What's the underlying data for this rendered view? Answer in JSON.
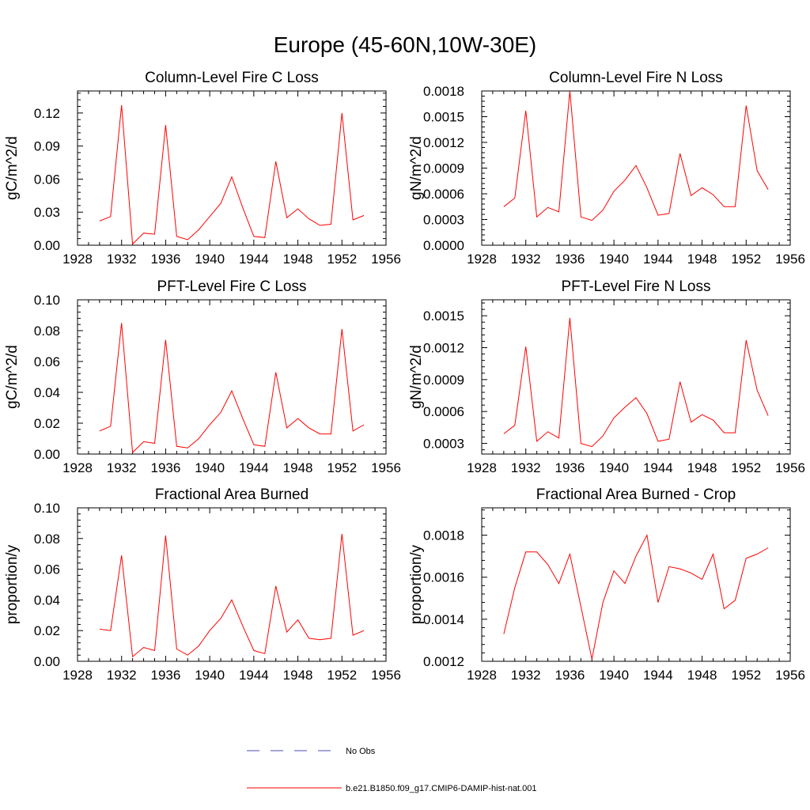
{
  "figure_title": "Europe (45-60N,10W-30E)",
  "colors": {
    "model_line": "#ff0000",
    "obs_line": "#4b4bb4",
    "axes": "#000000"
  },
  "legend": {
    "obs_label": "No Obs",
    "model_label": "b.e21.B1850.f09_g17.CMIP6-DAMIP-hist-nat.001",
    "obs_style": "dashed",
    "model_style": "solid"
  },
  "chart_data": [
    {
      "type": "line",
      "title": "Column-Level Fire C Loss",
      "ylabel": "gC/m^2/d",
      "xlim": [
        1928,
        1956
      ],
      "ylim": [
        0,
        0.14
      ],
      "xticks": [
        "1928",
        "1932",
        "1936",
        "1940",
        "1944",
        "1948",
        "1952",
        "1956"
      ],
      "yticks": [
        "0.00",
        "0.03",
        "0.06",
        "0.09",
        "0.12"
      ],
      "ytick_values": [
        0,
        0.03,
        0.06,
        0.09,
        0.12
      ],
      "series": [
        {
          "x": [
            1930,
            1931,
            1932,
            1933,
            1934,
            1935,
            1936,
            1937,
            1938,
            1939,
            1940,
            1941,
            1942,
            1943,
            1944,
            1945,
            1946,
            1947,
            1948,
            1949,
            1950,
            1951,
            1952,
            1953,
            1954
          ],
          "values": [
            0.022,
            0.026,
            0.127,
            0.001,
            0.011,
            0.01,
            0.109,
            0.008,
            0.005,
            0.014,
            0.026,
            0.038,
            0.062,
            0.034,
            0.008,
            0.007,
            0.076,
            0.025,
            0.033,
            0.024,
            0.018,
            0.019,
            0.12,
            0.023,
            0.027
          ]
        }
      ]
    },
    {
      "type": "line",
      "title": "Column-Level Fire N Loss",
      "ylabel": "gN/m^2/d",
      "xlim": [
        1928,
        1956
      ],
      "ylim": [
        0,
        0.0018
      ],
      "xticks": [
        "1928",
        "1932",
        "1936",
        "1940",
        "1944",
        "1948",
        "1952",
        "1956"
      ],
      "yticks": [
        "0.0000",
        "0.0003",
        "0.0006",
        "0.0009",
        "0.0012",
        "0.0015",
        "0.0018"
      ],
      "ytick_values": [
        0,
        0.0003,
        0.0006,
        0.0009,
        0.0012,
        0.0015,
        0.0018
      ],
      "series": [
        {
          "x": [
            1930,
            1931,
            1932,
            1933,
            1934,
            1935,
            1936,
            1937,
            1938,
            1939,
            1940,
            1941,
            1942,
            1943,
            1944,
            1945,
            1946,
            1947,
            1948,
            1949,
            1950,
            1951,
            1952,
            1953,
            1954
          ],
          "values": [
            0.00045,
            0.00055,
            0.00157,
            0.00033,
            0.00044,
            0.00039,
            0.0018,
            0.00033,
            0.00029,
            0.00041,
            0.00063,
            0.00076,
            0.00093,
            0.00067,
            0.00035,
            0.00037,
            0.00107,
            0.00058,
            0.00067,
            0.00059,
            0.00045,
            0.00045,
            0.00163,
            0.00087,
            0.00065
          ]
        }
      ]
    },
    {
      "type": "line",
      "title": "PFT-Level Fire C Loss",
      "ylabel": "gC/m^2/d",
      "xlim": [
        1928,
        1956
      ],
      "ylim": [
        0,
        0.1
      ],
      "xticks": [
        "1928",
        "1932",
        "1936",
        "1940",
        "1944",
        "1948",
        "1952",
        "1956"
      ],
      "yticks": [
        "0.00",
        "0.02",
        "0.04",
        "0.06",
        "0.08",
        "0.10"
      ],
      "ytick_values": [
        0,
        0.02,
        0.04,
        0.06,
        0.08,
        0.1
      ],
      "series": [
        {
          "x": [
            1930,
            1931,
            1932,
            1933,
            1934,
            1935,
            1936,
            1937,
            1938,
            1939,
            1940,
            1941,
            1942,
            1943,
            1944,
            1945,
            1946,
            1947,
            1948,
            1949,
            1950,
            1951,
            1952,
            1953,
            1954
          ],
          "values": [
            0.015,
            0.018,
            0.085,
            0.001,
            0.008,
            0.007,
            0.074,
            0.005,
            0.004,
            0.01,
            0.019,
            0.027,
            0.041,
            0.023,
            0.006,
            0.005,
            0.053,
            0.017,
            0.023,
            0.017,
            0.013,
            0.013,
            0.081,
            0.015,
            0.019
          ]
        }
      ]
    },
    {
      "type": "line",
      "title": "PFT-Level Fire N Loss",
      "ylabel": "gN/m^2/d",
      "xlim": [
        1928,
        1956
      ],
      "ylim": [
        0.0002,
        0.00165
      ],
      "xticks": [
        "1928",
        "1932",
        "1936",
        "1940",
        "1944",
        "1948",
        "1952",
        "1956"
      ],
      "yticks": [
        "0.0003",
        "0.0006",
        "0.0009",
        "0.0012",
        "0.0015"
      ],
      "ytick_values": [
        0.0003,
        0.0006,
        0.0009,
        0.0012,
        0.0015
      ],
      "series": [
        {
          "x": [
            1930,
            1931,
            1932,
            1933,
            1934,
            1935,
            1936,
            1937,
            1938,
            1939,
            1940,
            1941,
            1942,
            1943,
            1944,
            1945,
            1946,
            1947,
            1948,
            1949,
            1950,
            1951,
            1952,
            1953,
            1954
          ],
          "values": [
            0.00039,
            0.00047,
            0.00121,
            0.00032,
            0.00041,
            0.00035,
            0.00148,
            0.0003,
            0.00027,
            0.00037,
            0.00054,
            0.00064,
            0.00073,
            0.00058,
            0.00032,
            0.00034,
            0.00088,
            0.0005,
            0.00057,
            0.00052,
            0.0004,
            0.0004,
            0.00127,
            0.0008,
            0.00056
          ]
        }
      ]
    },
    {
      "type": "line",
      "title": "Fractional Area Burned",
      "ylabel": "proportion/y",
      "xlim": [
        1928,
        1956
      ],
      "ylim": [
        0,
        0.1
      ],
      "xticks": [
        "1928",
        "1932",
        "1936",
        "1940",
        "1944",
        "1948",
        "1952",
        "1956"
      ],
      "yticks": [
        "0.00",
        "0.02",
        "0.04",
        "0.06",
        "0.08",
        "0.10"
      ],
      "ytick_values": [
        0,
        0.02,
        0.04,
        0.06,
        0.08,
        0.1
      ],
      "series": [
        {
          "x": [
            1930,
            1931,
            1932,
            1933,
            1934,
            1935,
            1936,
            1937,
            1938,
            1939,
            1940,
            1941,
            1942,
            1943,
            1944,
            1945,
            1946,
            1947,
            1948,
            1949,
            1950,
            1951,
            1952,
            1953,
            1954
          ],
          "values": [
            0.021,
            0.02,
            0.069,
            0.003,
            0.009,
            0.007,
            0.082,
            0.008,
            0.004,
            0.01,
            0.02,
            0.028,
            0.04,
            0.023,
            0.007,
            0.005,
            0.049,
            0.019,
            0.027,
            0.015,
            0.014,
            0.015,
            0.083,
            0.017,
            0.02
          ]
        }
      ]
    },
    {
      "type": "line",
      "title": "Fractional Area Burned - Crop",
      "ylabel": "proportion/y",
      "xlim": [
        1928,
        1956
      ],
      "ylim": [
        0.0012,
        0.00193
      ],
      "xticks": [
        "1928",
        "1932",
        "1936",
        "1940",
        "1944",
        "1948",
        "1952",
        "1956"
      ],
      "yticks": [
        "0.0012",
        "0.0014",
        "0.0016",
        "0.0018"
      ],
      "ytick_values": [
        0.0012,
        0.0014,
        0.0016,
        0.0018
      ],
      "series": [
        {
          "x": [
            1930,
            1931,
            1932,
            1933,
            1934,
            1935,
            1936,
            1937,
            1938,
            1939,
            1940,
            1941,
            1942,
            1943,
            1944,
            1945,
            1946,
            1947,
            1948,
            1949,
            1950,
            1951,
            1952,
            1953,
            1954
          ],
          "values": [
            0.00133,
            0.00155,
            0.00172,
            0.00172,
            0.00166,
            0.00157,
            0.00171,
            0.00146,
            0.00121,
            0.00148,
            0.00163,
            0.00157,
            0.0017,
            0.0018,
            0.00148,
            0.00165,
            0.00164,
            0.00162,
            0.00159,
            0.00171,
            0.00145,
            0.00149,
            0.00169,
            0.00171,
            0.00174
          ]
        }
      ]
    }
  ]
}
